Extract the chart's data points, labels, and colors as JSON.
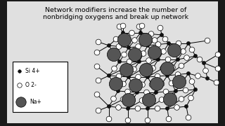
{
  "title_line1": "Network modifiers increase the number of",
  "title_line2": "nonbridging oxygens and break up network",
  "outer_bg": "#1a1a1a",
  "inner_bg": "#c8c8c8",
  "diagram_bg": "#e8e8e8",
  "si_color": "#111111",
  "o_color": "#ffffff",
  "na_color": "#555555",
  "si_r": 0.008,
  "o_r": 0.012,
  "na_r": 0.03,
  "bond_lw": 0.7,
  "title_fontsize": 6.8,
  "legend_fontsize": 5.5,
  "legend_label_si": "Si 4+",
  "legend_label_o": "O 2-",
  "legend_label_na": "Na+"
}
